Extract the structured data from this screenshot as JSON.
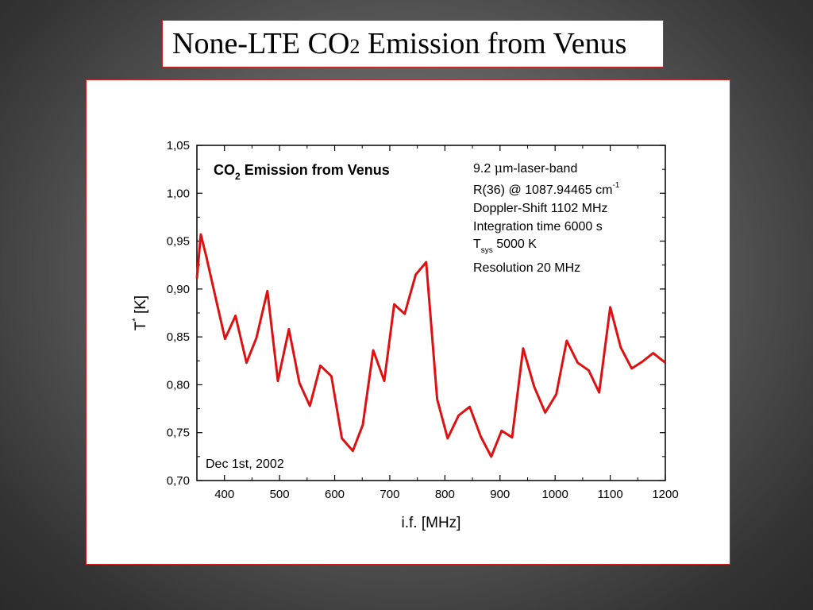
{
  "slide": {
    "title_main": "None-LTE CO",
    "title_sub": "2",
    "title_rest": " Emission from Venus"
  },
  "chart_data": {
    "type": "line",
    "xlabel": "i.f. [MHz]",
    "ylabel_main": "T",
    "ylabel_sup": "*",
    "ylabel_unit": " [K]",
    "xlim": [
      350,
      1200
    ],
    "ylim": [
      0.7,
      1.05
    ],
    "x_ticks": [
      400,
      500,
      600,
      700,
      800,
      900,
      1000,
      1100,
      1200
    ],
    "y_ticks": [
      0.7,
      0.75,
      0.8,
      0.85,
      0.9,
      0.95,
      1.0,
      1.05
    ],
    "x_tick_labels": [
      "400",
      "500",
      "600",
      "700",
      "800",
      "900",
      "1000",
      "1100",
      "1200"
    ],
    "y_tick_labels": [
      "0,70",
      "0,75",
      "0,80",
      "0,85",
      "0,90",
      "0,95",
      "1,00",
      "1,05"
    ],
    "series_color": "#e01010",
    "series": [
      {
        "x": [
          350,
          357,
          367,
          382,
          401,
          420,
          440,
          458,
          478,
          497,
          517,
          536,
          555,
          574,
          594,
          613,
          633,
          651,
          670,
          690,
          708,
          727,
          747,
          766,
          786,
          805,
          825,
          845,
          865,
          884,
          903,
          922,
          942,
          962,
          982,
          1002,
          1021,
          1041,
          1061,
          1080,
          1100,
          1119,
          1139,
          1158,
          1178,
          1200
        ],
        "y": [
          0.911,
          0.957,
          0.934,
          0.896,
          0.848,
          0.872,
          0.823,
          0.849,
          0.898,
          0.804,
          0.858,
          0.802,
          0.778,
          0.82,
          0.809,
          0.744,
          0.731,
          0.758,
          0.836,
          0.804,
          0.884,
          0.874,
          0.915,
          0.928,
          0.785,
          0.744,
          0.768,
          0.777,
          0.746,
          0.725,
          0.752,
          0.745,
          0.838,
          0.798,
          0.771,
          0.79,
          0.846,
          0.823,
          0.815,
          0.792,
          0.881,
          0.839,
          0.817,
          0.824,
          0.833,
          0.823
        ]
      }
    ],
    "annotation_title": "CO",
    "annotation_title_sub": "2",
    "annotation_title_rest": " Emission from Venus",
    "info_lines": {
      "line1_pre": "9.2 ",
      "line1_mu": "μ",
      "line1_post": "m-laser-band",
      "line2": "R(36) @ 1087.94465 cm",
      "line2_sup": "-1",
      "line3": "Doppler-Shift 1102 MHz",
      "line4": "Integration time 6000 s",
      "line5_pre": "T",
      "line5_sub": "sys",
      "line5_post": " 5000 K",
      "line6": "Resolution 20 MHz"
    },
    "date_note": "Dec 1st, 2002"
  }
}
